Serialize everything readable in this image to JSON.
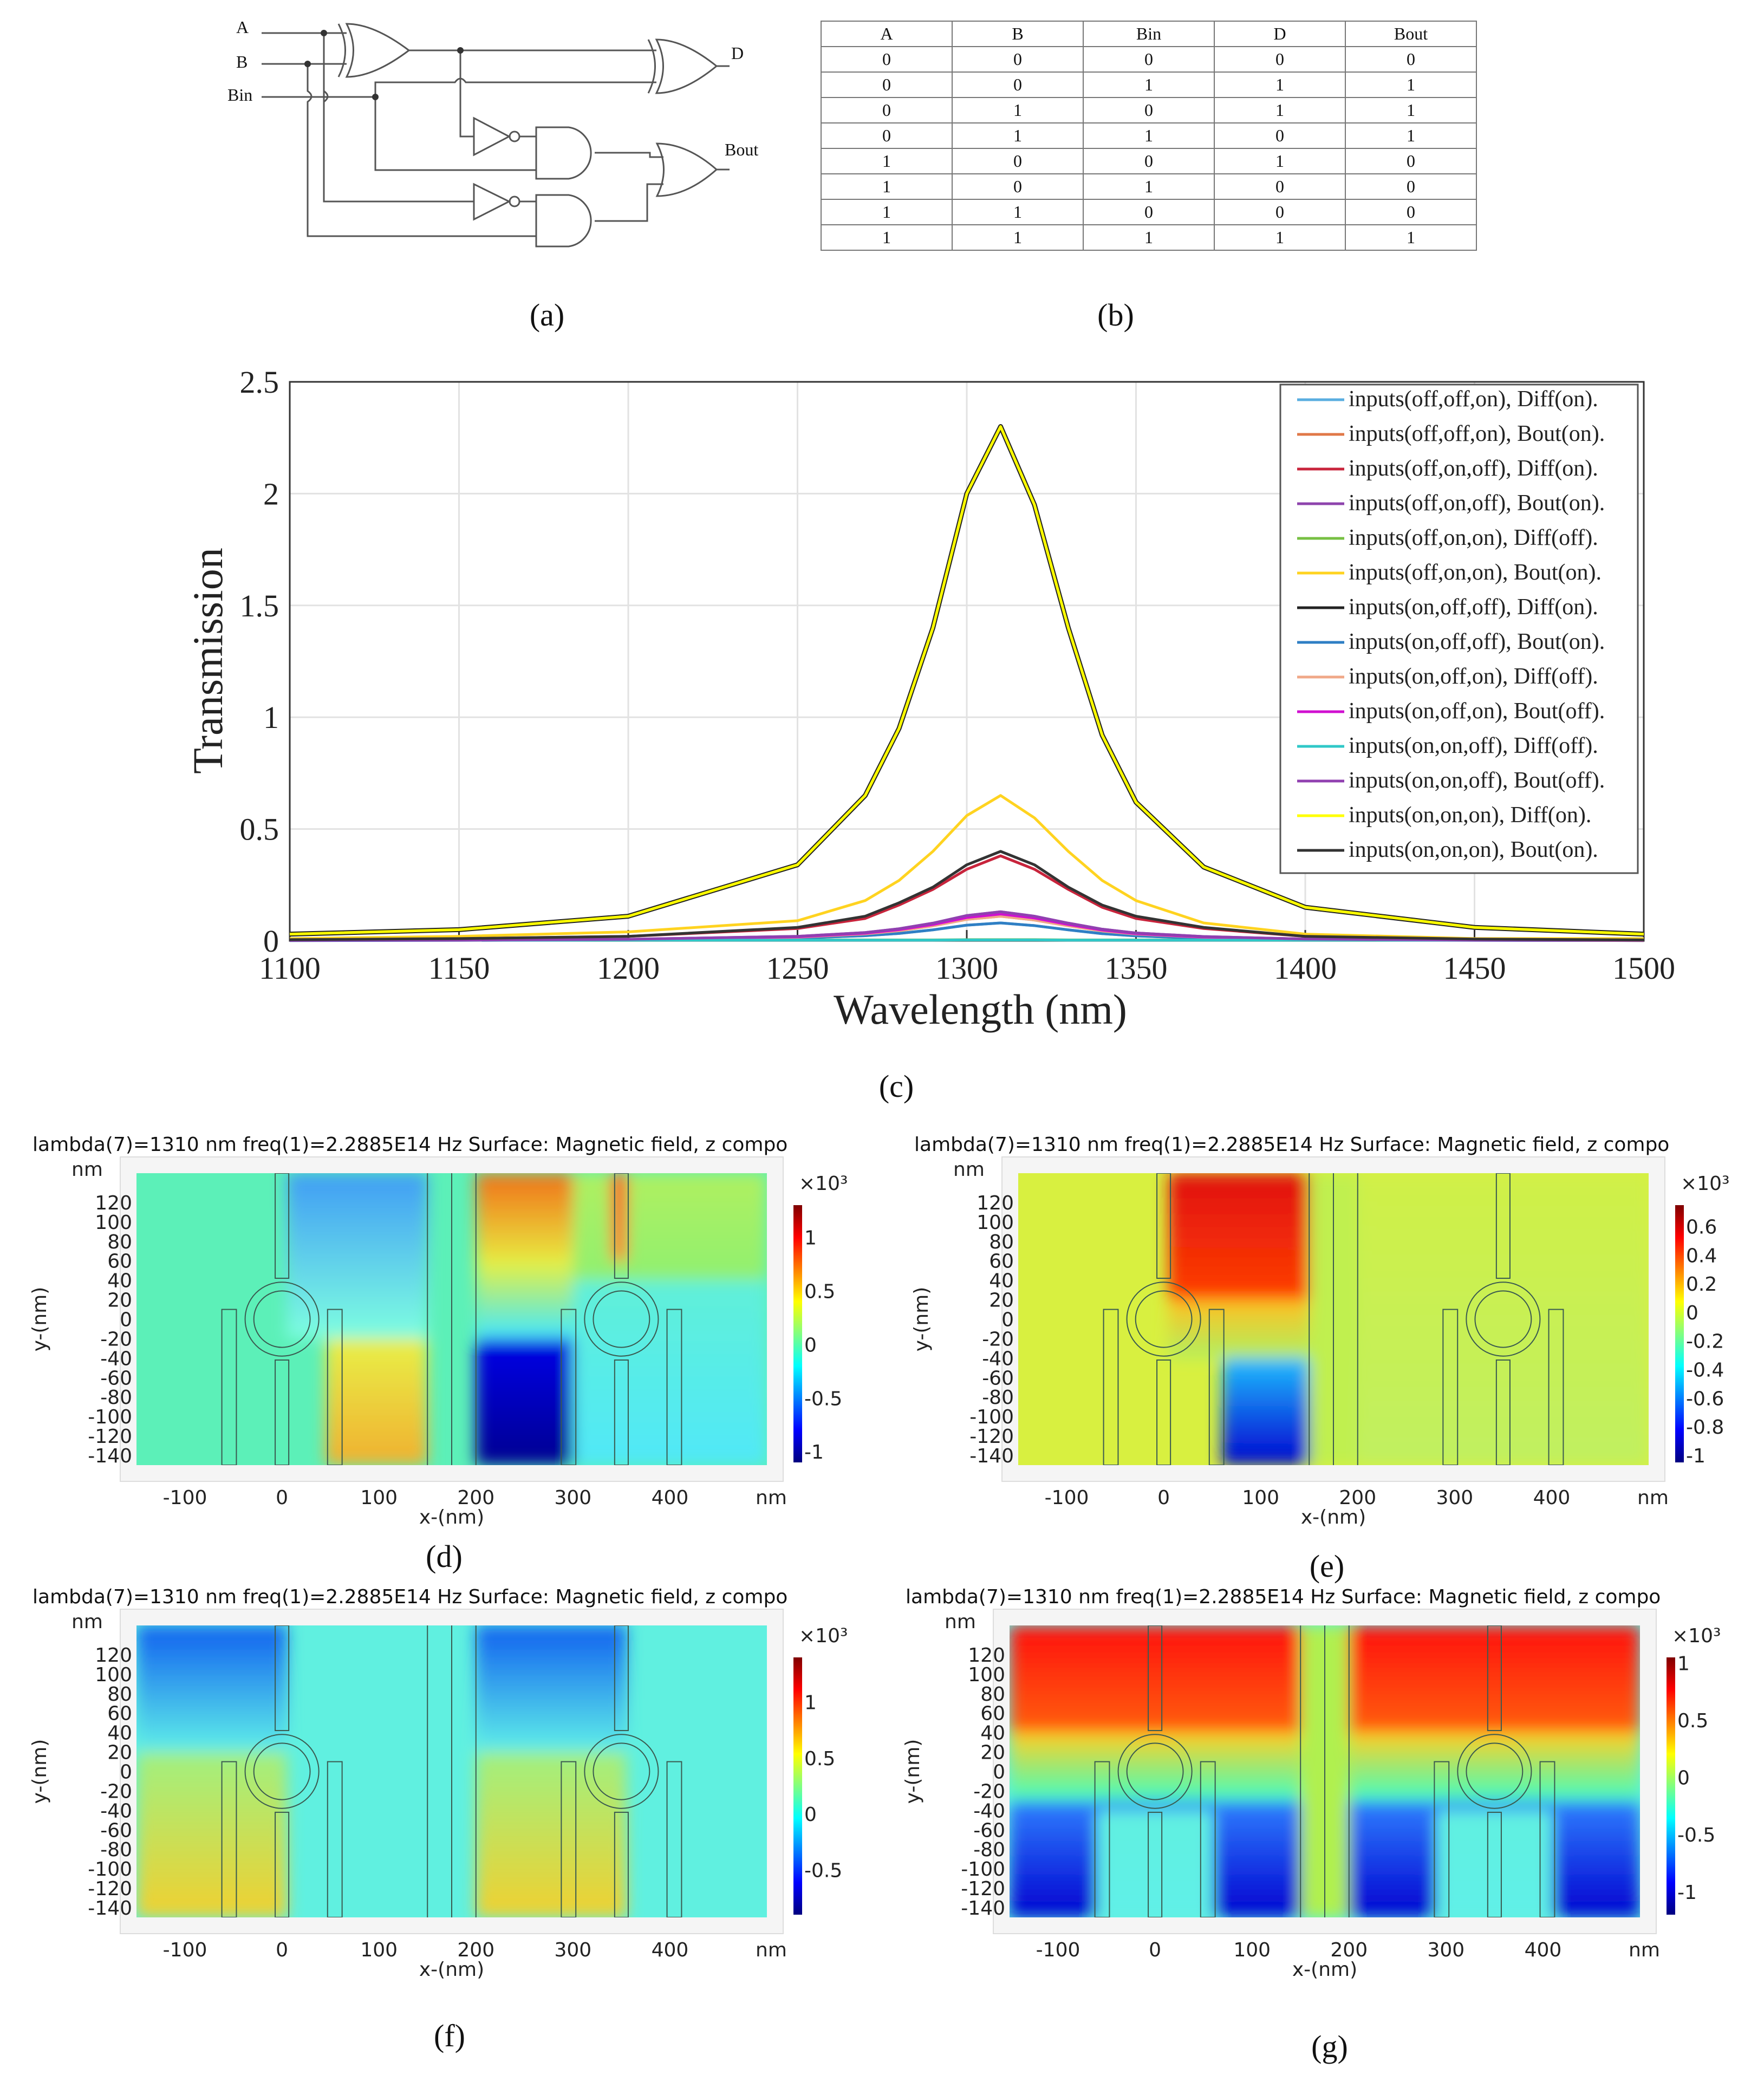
{
  "figure_a": {
    "label": "(a)",
    "inputs": [
      "A",
      "B",
      "Bin"
    ],
    "outputs": [
      "D",
      "Bout"
    ]
  },
  "figure_b": {
    "label": "(b)",
    "headers": [
      "A",
      "B",
      "Bin",
      "D",
      "Bout"
    ],
    "rows": [
      [
        "0",
        "0",
        "0",
        "0",
        "0"
      ],
      [
        "0",
        "0",
        "1",
        "1",
        "1"
      ],
      [
        "0",
        "1",
        "0",
        "1",
        "1"
      ],
      [
        "0",
        "1",
        "1",
        "0",
        "1"
      ],
      [
        "1",
        "0",
        "0",
        "1",
        "0"
      ],
      [
        "1",
        "0",
        "1",
        "0",
        "0"
      ],
      [
        "1",
        "1",
        "0",
        "0",
        "0"
      ],
      [
        "1",
        "1",
        "1",
        "1",
        "1"
      ]
    ]
  },
  "chart_data": {
    "type": "line",
    "label": "(c)",
    "xlabel": "Wavelength (nm)",
    "ylabel": "Transmission",
    "xlim": [
      1100,
      1500
    ],
    "ylim": [
      0,
      2.5
    ],
    "xticks": [
      "1100",
      "1150",
      "1200",
      "1250",
      "1300",
      "1350",
      "1400",
      "1450",
      "1500"
    ],
    "yticks": [
      "0",
      "0.5",
      "1",
      "1.5",
      "2",
      "2.5"
    ],
    "grid": true,
    "legend_position": "top-right",
    "x": [
      1100,
      1150,
      1200,
      1250,
      1270,
      1280,
      1290,
      1300,
      1310,
      1320,
      1330,
      1340,
      1350,
      1370,
      1400,
      1450,
      1500
    ],
    "series": [
      {
        "name": "inputs(off,off,on), Diff(on).",
        "color": "#5aaee0",
        "values": [
          0.001,
          0.002,
          0.004,
          0.012,
          0.023,
          0.033,
          0.049,
          0.07,
          0.08,
          0.068,
          0.049,
          0.032,
          0.022,
          0.011,
          0.005,
          0.002,
          0.001
        ]
      },
      {
        "name": "inputs(off,off,on), Bout(on).",
        "color": "#e07848",
        "values": [
          0.002,
          0.003,
          0.005,
          0.016,
          0.031,
          0.045,
          0.067,
          0.096,
          0.11,
          0.093,
          0.067,
          0.044,
          0.03,
          0.016,
          0.007,
          0.003,
          0.001
        ]
      },
      {
        "name": "inputs(off,on,off), Diff(on).",
        "color": "#c8243c",
        "values": [
          0.005,
          0.01,
          0.02,
          0.055,
          0.1,
          0.16,
          0.23,
          0.32,
          0.38,
          0.32,
          0.23,
          0.15,
          0.1,
          0.055,
          0.02,
          0.008,
          0.004
        ]
      },
      {
        "name": "inputs(off,on,off), Bout(on).",
        "color": "#8e44ad",
        "values": [
          0.002,
          0.003,
          0.007,
          0.02,
          0.037,
          0.054,
          0.079,
          0.113,
          0.13,
          0.11,
          0.079,
          0.052,
          0.035,
          0.019,
          0.008,
          0.003,
          0.002
        ]
      },
      {
        "name": "inputs(off,on,on), Diff(off).",
        "color": "#77c043",
        "values": [
          0.004,
          0.004,
          0.004,
          0.004,
          0.004,
          0.004,
          0.004,
          0.005,
          0.005,
          0.005,
          0.004,
          0.004,
          0.004,
          0.004,
          0.004,
          0.004,
          0.004
        ]
      },
      {
        "name": "inputs(off,on,on), Bout(on).",
        "color": "#ffd320",
        "values": [
          0.01,
          0.02,
          0.04,
          0.09,
          0.18,
          0.27,
          0.4,
          0.56,
          0.65,
          0.55,
          0.4,
          0.27,
          0.18,
          0.08,
          0.03,
          0.01,
          0.01
        ]
      },
      {
        "name": "inputs(on,off,off), Diff(on).",
        "color": "#222222",
        "values": [
          0.03,
          0.05,
          0.11,
          0.34,
          0.65,
          0.95,
          1.4,
          2.0,
          2.3,
          1.95,
          1.4,
          0.92,
          0.62,
          0.33,
          0.15,
          0.06,
          0.03
        ]
      },
      {
        "name": "inputs(on,off,off), Bout(on).",
        "color": "#2f7fc4",
        "values": [
          0.001,
          0.002,
          0.004,
          0.012,
          0.023,
          0.033,
          0.049,
          0.07,
          0.08,
          0.068,
          0.049,
          0.032,
          0.022,
          0.011,
          0.005,
          0.002,
          0.001
        ]
      },
      {
        "name": "inputs(on,off,on), Diff(off).",
        "color": "#f0a888",
        "values": [
          0.002,
          0.003,
          0.005,
          0.016,
          0.031,
          0.045,
          0.067,
          0.096,
          0.11,
          0.093,
          0.067,
          0.044,
          0.03,
          0.016,
          0.007,
          0.003,
          0.001
        ]
      },
      {
        "name": "inputs(on,off,on), Bout(off).",
        "color": "#d010d0",
        "values": [
          0.002,
          0.003,
          0.006,
          0.018,
          0.034,
          0.05,
          0.073,
          0.104,
          0.12,
          0.102,
          0.073,
          0.048,
          0.032,
          0.017,
          0.008,
          0.003,
          0.002
        ]
      },
      {
        "name": "inputs(on,on,off), Diff(off).",
        "color": "#30c8c8",
        "values": [
          0.003,
          0.003,
          0.003,
          0.003,
          0.003,
          0.003,
          0.003,
          0.004,
          0.004,
          0.004,
          0.003,
          0.003,
          0.003,
          0.003,
          0.003,
          0.003,
          0.003
        ]
      },
      {
        "name": "inputs(on,on,off), Bout(off).",
        "color": "#9040b0",
        "values": [
          0.002,
          0.003,
          0.007,
          0.02,
          0.037,
          0.054,
          0.079,
          0.113,
          0.13,
          0.11,
          0.079,
          0.052,
          0.035,
          0.019,
          0.008,
          0.003,
          0.002
        ]
      },
      {
        "name": "inputs(on,on,on), Diff(on).",
        "color": "#ffff00",
        "values": [
          0.03,
          0.05,
          0.11,
          0.34,
          0.65,
          0.95,
          1.4,
          2.0,
          2.3,
          1.95,
          1.4,
          0.92,
          0.62,
          0.33,
          0.15,
          0.06,
          0.03
        ]
      },
      {
        "name": "inputs(on,on,on), Bout(on).",
        "color": "#333333",
        "values": [
          0.005,
          0.01,
          0.02,
          0.06,
          0.11,
          0.17,
          0.24,
          0.34,
          0.4,
          0.34,
          0.24,
          0.16,
          0.11,
          0.06,
          0.02,
          0.008,
          0.004
        ]
      }
    ]
  },
  "field_panels": {
    "title": "lambda(7)=1310 nm freq(1)=2.2885E14 Hz  Surface: Magnetic field, z compo",
    "unit": "nm",
    "xlabel": "x-(nm)",
    "ylabel": "y-(nm)",
    "xticks": [
      "-100",
      "0",
      "100",
      "200",
      "300",
      "400"
    ],
    "yticks": [
      "120",
      "100",
      "80",
      "60",
      "40",
      "20",
      "0",
      "-20",
      "-40",
      "-60",
      "-80",
      "-100",
      "-120",
      "-140"
    ],
    "colorbar_scale": "×10³",
    "panels": [
      {
        "label": "(d)",
        "colorbar_ticks": [
          "1",
          "0.5",
          "0",
          "-0.5",
          "-1"
        ],
        "colorbar_range": [
          -1.1,
          1.3
        ]
      },
      {
        "label": "(e)",
        "colorbar_ticks": [
          "0.6",
          "0.4",
          "0.2",
          "0",
          "-0.2",
          "-0.4",
          "-0.6",
          "-0.8",
          "-1"
        ],
        "colorbar_range": [
          -1.05,
          0.75
        ]
      },
      {
        "label": "(f)",
        "colorbar_ticks": [
          "1",
          "0.5",
          "0",
          "-0.5"
        ],
        "colorbar_range": [
          -0.9,
          1.4
        ]
      },
      {
        "label": "(g)",
        "colorbar_ticks": [
          "1",
          "0.5",
          "0",
          "-0.5",
          "-1"
        ],
        "colorbar_range": [
          -1.2,
          1.05
        ]
      }
    ]
  }
}
